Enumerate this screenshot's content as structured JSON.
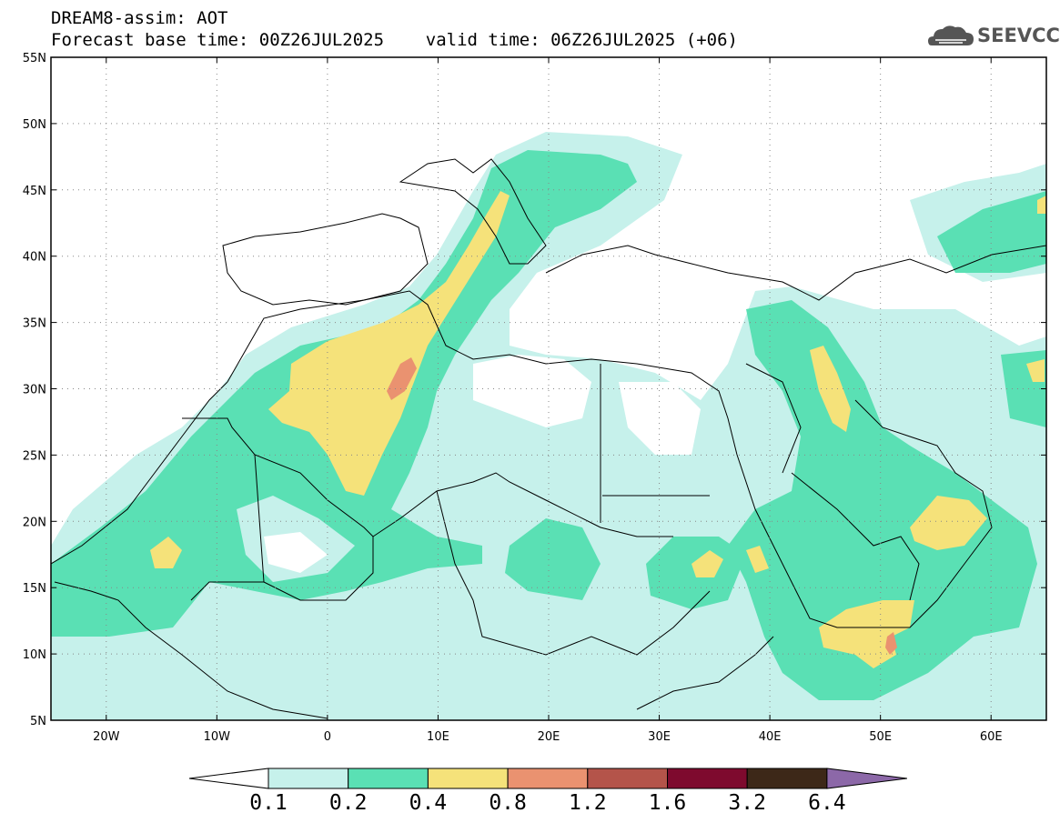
{
  "header": {
    "line1": "DREAM8-assim: AOT",
    "line2": "Forecast base time: 00Z26JUL2025    valid time: 06Z26JUL2025 (+06)"
  },
  "logo": {
    "text": "SEEVCCC",
    "icon": "cloud-icon"
  },
  "map": {
    "lon_range": [
      -25,
      65
    ],
    "lat_range": [
      5,
      55
    ],
    "lat_labels": [
      "55N",
      "50N",
      "45N",
      "40N",
      "35N",
      "30N",
      "25N",
      "20N",
      "15N",
      "10N",
      "5N"
    ],
    "lon_labels": [
      "20W",
      "10W",
      "0",
      "10E",
      "20E",
      "30E",
      "40E",
      "50E",
      "60E"
    ],
    "grid": "dotted"
  },
  "colorbar": {
    "levels": [
      "0.1",
      "0.2",
      "0.4",
      "0.8",
      "1.2",
      "1.6",
      "3.2",
      "6.4"
    ],
    "colors": [
      "#c6f1eb",
      "#5ae0b4",
      "#f5e27a",
      "#ea9270",
      "#b4544a",
      "#7e0a2e",
      "#3d2818",
      "#8c68a8"
    ],
    "extend": "both"
  }
}
